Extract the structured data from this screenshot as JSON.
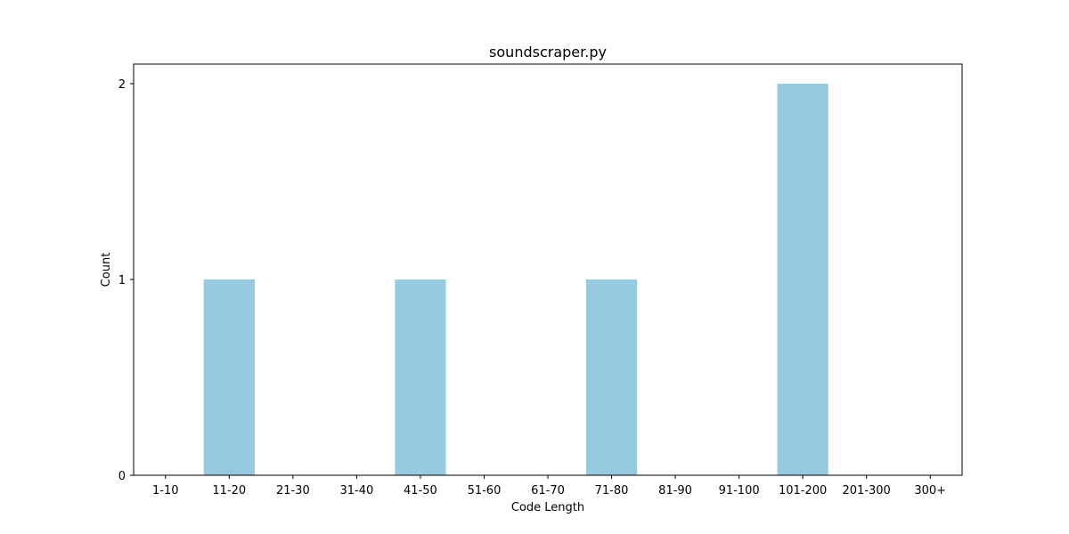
{
  "chart_data": {
    "type": "bar",
    "title": "soundscraper.py",
    "xlabel": "Code Length",
    "ylabel": "Count",
    "categories": [
      "1-10",
      "11-20",
      "21-30",
      "31-40",
      "41-50",
      "51-60",
      "61-70",
      "71-80",
      "81-90",
      "91-100",
      "101-200",
      "201-300",
      "300+"
    ],
    "values": [
      0,
      1,
      0,
      0,
      1,
      0,
      0,
      1,
      0,
      0,
      2,
      0,
      0
    ],
    "ylim": [
      0,
      2.1
    ],
    "yticks": [
      0,
      1,
      2
    ],
    "grid": false,
    "bar_color": "#96CAE0"
  }
}
